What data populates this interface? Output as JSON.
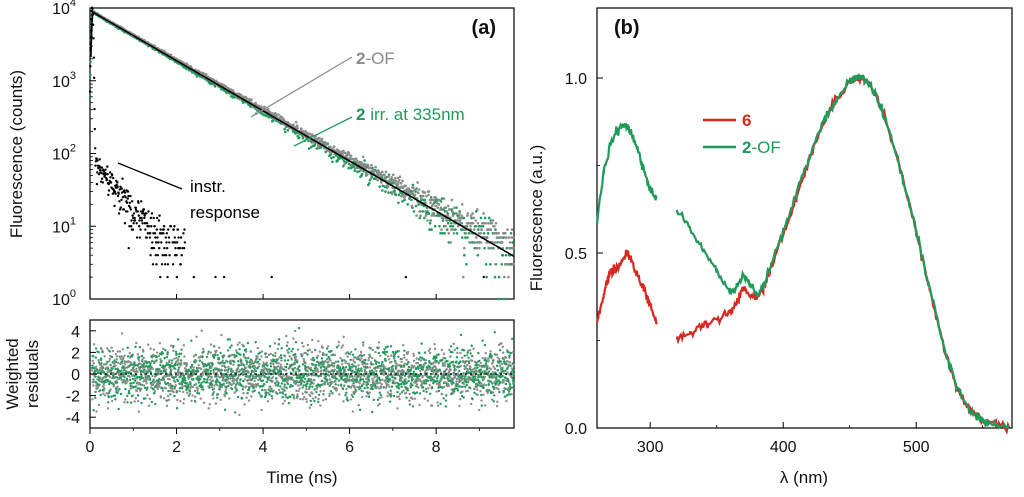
{
  "chart_data": [
    {
      "id": "a",
      "panel_label": "(a)",
      "type": "scatter",
      "yscale": "log",
      "xlabel": "Time (ns)",
      "ylabel": "Fluorescence (counts)",
      "xlim": [
        0,
        9.8
      ],
      "ylim": [
        1,
        10000
      ],
      "xticks": [
        0,
        2,
        4,
        6,
        8
      ],
      "ytick_bases": [
        "10",
        "10",
        "10",
        "10",
        "10"
      ],
      "ytick_exps": [
        "0",
        "1",
        "2",
        "3",
        "4"
      ],
      "ytick_values": [
        1,
        10,
        100,
        1000,
        10000
      ],
      "series": [
        {
          "name": "2-OF",
          "label_num": "2",
          "label_rest": "-OF",
          "color": "#8c8c8c",
          "decay": {
            "amplitude": 9000,
            "tau_ns": 1.27,
            "floor": 3
          }
        },
        {
          "name": "2 irr. at 335nm",
          "label_num": "2",
          "label_rest": " irr. at 335nm",
          "color": "#1f9a5a",
          "decay": {
            "amplitude": 8700,
            "tau_ns": 1.25,
            "floor": 2
          }
        },
        {
          "name": "fit",
          "color": "#000000",
          "decay": {
            "amplitude": 8800,
            "tau_ns": 1.26,
            "floor": 0
          }
        },
        {
          "name": "instr. response",
          "label_line1": "instr.",
          "label_line2": "response",
          "color": "#000000",
          "peak": 10000,
          "peak_time_ns": 0.05,
          "width_ns": 0.03
        }
      ],
      "annotations": [
        {
          "text": "2-OF",
          "points_to_time_ns": 4.1
        },
        {
          "text": "2 irr. at 335nm",
          "points_to_time_ns": 4.8
        },
        {
          "text": "instr. response",
          "points_to_time_ns": 0.6
        }
      ]
    },
    {
      "id": "a-residuals",
      "type": "scatter",
      "ylabel_line1": "Weighted",
      "ylabel_line2": "residuals",
      "xlim": [
        0,
        9.8
      ],
      "ylim": [
        -5,
        5
      ],
      "yticks": [
        4,
        2,
        0,
        -2,
        -4
      ],
      "xticks": [
        0,
        2,
        4,
        6,
        8
      ],
      "spread": 1.2,
      "zero_line": "dotted"
    },
    {
      "id": "b",
      "panel_label": "(b)",
      "type": "line",
      "xlabel": "λ (nm)",
      "ylabel": "Fluorescence (a.u.)",
      "xlim": [
        260,
        572
      ],
      "ylim": [
        0,
        1.2
      ],
      "xticks": [
        300,
        400,
        500
      ],
      "yticks": [
        "1.0",
        "0.5",
        "0.0"
      ],
      "ytick_values": [
        1.0,
        0.5,
        0.0
      ],
      "legend_position": "top-center",
      "series": [
        {
          "name": "6",
          "color": "#d42a20",
          "label_num": "6",
          "label_rest": "",
          "x": [
            260,
            265,
            270,
            275,
            280,
            283,
            286,
            290,
            295,
            300,
            305,
            315,
            320,
            330,
            340,
            350,
            360,
            365,
            370,
            375,
            380,
            385,
            390,
            400,
            410,
            420,
            430,
            440,
            450,
            455,
            460,
            465,
            470,
            480,
            490,
            500,
            510,
            520,
            530,
            540,
            550,
            560,
            570
          ],
          "values": [
            0.3,
            0.38,
            0.45,
            0.46,
            0.48,
            0.5,
            0.48,
            0.44,
            0.4,
            0.35,
            0.3,
            null,
            0.26,
            0.27,
            0.29,
            0.31,
            0.33,
            0.36,
            0.4,
            0.38,
            0.37,
            0.4,
            0.45,
            0.55,
            0.66,
            0.77,
            0.87,
            0.94,
            0.99,
            1.0,
            1.0,
            0.98,
            0.95,
            0.85,
            0.71,
            0.56,
            0.4,
            0.24,
            0.12,
            0.05,
            0.02,
            0.01,
            0.0
          ]
        },
        {
          "name": "2-OF",
          "color": "#1f9a5a",
          "label_num": "2",
          "label_rest": "-OF",
          "x": [
            260,
            265,
            270,
            275,
            280,
            283,
            286,
            290,
            295,
            300,
            305,
            315,
            320,
            330,
            340,
            350,
            360,
            365,
            370,
            375,
            380,
            385,
            390,
            400,
            410,
            420,
            430,
            440,
            450,
            455,
            460,
            465,
            470,
            480,
            490,
            500,
            510,
            520,
            530,
            540,
            550,
            560,
            570
          ],
          "values": [
            0.59,
            0.73,
            0.81,
            0.85,
            0.86,
            0.86,
            0.84,
            0.8,
            0.74,
            0.68,
            0.66,
            null,
            0.62,
            0.57,
            0.51,
            0.45,
            0.39,
            0.4,
            0.44,
            0.41,
            0.38,
            0.41,
            0.46,
            0.56,
            0.67,
            0.78,
            0.87,
            0.94,
            0.99,
            1.0,
            1.0,
            0.98,
            0.95,
            0.85,
            0.71,
            0.56,
            0.4,
            0.24,
            0.12,
            0.05,
            0.02,
            0.01,
            0.0
          ]
        }
      ]
    }
  ]
}
